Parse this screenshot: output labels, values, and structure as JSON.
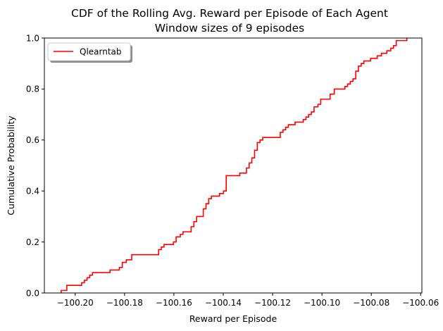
{
  "chart_data": {
    "type": "line",
    "title": "CDF of the Rolling Avg. Reward per Episode of Each Agent",
    "subtitle": "Window sizes of 9 episodes",
    "xlabel": "Reward per Episode",
    "ylabel": "Cumulative Probability",
    "xlim": [
      -100.2125,
      -100.0595
    ],
    "ylim": [
      0,
      1.0
    ],
    "x_ticks": [
      "−100.20",
      "−100.18",
      "−100.16",
      "−100.14",
      "−100.12",
      "−100.10",
      "−100.08",
      "−100.06"
    ],
    "x_tick_values": [
      -100.2,
      -100.18,
      -100.16,
      -100.14,
      -100.12,
      -100.1,
      -100.08,
      -100.06
    ],
    "y_ticks": [
      "0.0",
      "0.2",
      "0.4",
      "0.6",
      "0.8",
      "1.0"
    ],
    "y_tick_values": [
      0.0,
      0.2,
      0.4,
      0.6,
      0.8,
      1.0
    ],
    "legend_position": "top-left",
    "grid": false,
    "series": [
      {
        "name": "Qlearntab",
        "color": "#ff0000",
        "step": "post",
        "points": [
          [
            -100.2057,
            0.0
          ],
          [
            -100.2057,
            0.01
          ],
          [
            -100.2034,
            0.03
          ],
          [
            -100.1974,
            0.04
          ],
          [
            -100.1963,
            0.05
          ],
          [
            -100.1952,
            0.06
          ],
          [
            -100.1941,
            0.07
          ],
          [
            -100.193,
            0.08
          ],
          [
            -100.1859,
            0.09
          ],
          [
            -100.1821,
            0.1
          ],
          [
            -100.1809,
            0.12
          ],
          [
            -100.1793,
            0.13
          ],
          [
            -100.1771,
            0.15
          ],
          [
            -100.1662,
            0.17
          ],
          [
            -100.1651,
            0.18
          ],
          [
            -100.164,
            0.19
          ],
          [
            -100.1602,
            0.2
          ],
          [
            -100.1591,
            0.22
          ],
          [
            -100.1574,
            0.23
          ],
          [
            -100.1563,
            0.24
          ],
          [
            -100.153,
            0.26
          ],
          [
            -100.1519,
            0.28
          ],
          [
            -100.1508,
            0.3
          ],
          [
            -100.1481,
            0.33
          ],
          [
            -100.147,
            0.35
          ],
          [
            -100.1459,
            0.37
          ],
          [
            -100.1448,
            0.38
          ],
          [
            -100.1415,
            0.39
          ],
          [
            -100.1399,
            0.4
          ],
          [
            -100.1388,
            0.46
          ],
          [
            -100.1366,
            0.46
          ],
          [
            -100.1333,
            0.47
          ],
          [
            -100.1306,
            0.49
          ],
          [
            -100.1295,
            0.51
          ],
          [
            -100.1284,
            0.53
          ],
          [
            -100.1273,
            0.56
          ],
          [
            -100.1262,
            0.59
          ],
          [
            -100.1251,
            0.6
          ],
          [
            -100.124,
            0.61
          ],
          [
            -100.1169,
            0.63
          ],
          [
            -100.1158,
            0.64
          ],
          [
            -100.1147,
            0.65
          ],
          [
            -100.1136,
            0.66
          ],
          [
            -100.1109,
            0.67
          ],
          [
            -100.1076,
            0.68
          ],
          [
            -100.1065,
            0.69
          ],
          [
            -100.1054,
            0.7
          ],
          [
            -100.1043,
            0.71
          ],
          [
            -100.1032,
            0.73
          ],
          [
            -100.1016,
            0.74
          ],
          [
            -100.1005,
            0.76
          ],
          [
            -100.0967,
            0.78
          ],
          [
            -100.095,
            0.8
          ],
          [
            -100.0907,
            0.81
          ],
          [
            -100.0896,
            0.82
          ],
          [
            -100.0885,
            0.83
          ],
          [
            -100.0874,
            0.84
          ],
          [
            -100.0863,
            0.87
          ],
          [
            -100.0852,
            0.89
          ],
          [
            -100.0841,
            0.9
          ],
          [
            -100.083,
            0.91
          ],
          [
            -100.0803,
            0.92
          ],
          [
            -100.0776,
            0.93
          ],
          [
            -100.0759,
            0.94
          ],
          [
            -100.0737,
            0.95
          ],
          [
            -100.0721,
            0.96
          ],
          [
            -100.071,
            0.97
          ],
          [
            -100.0699,
            0.99
          ],
          [
            -100.0656,
            1.0
          ]
        ]
      }
    ]
  }
}
